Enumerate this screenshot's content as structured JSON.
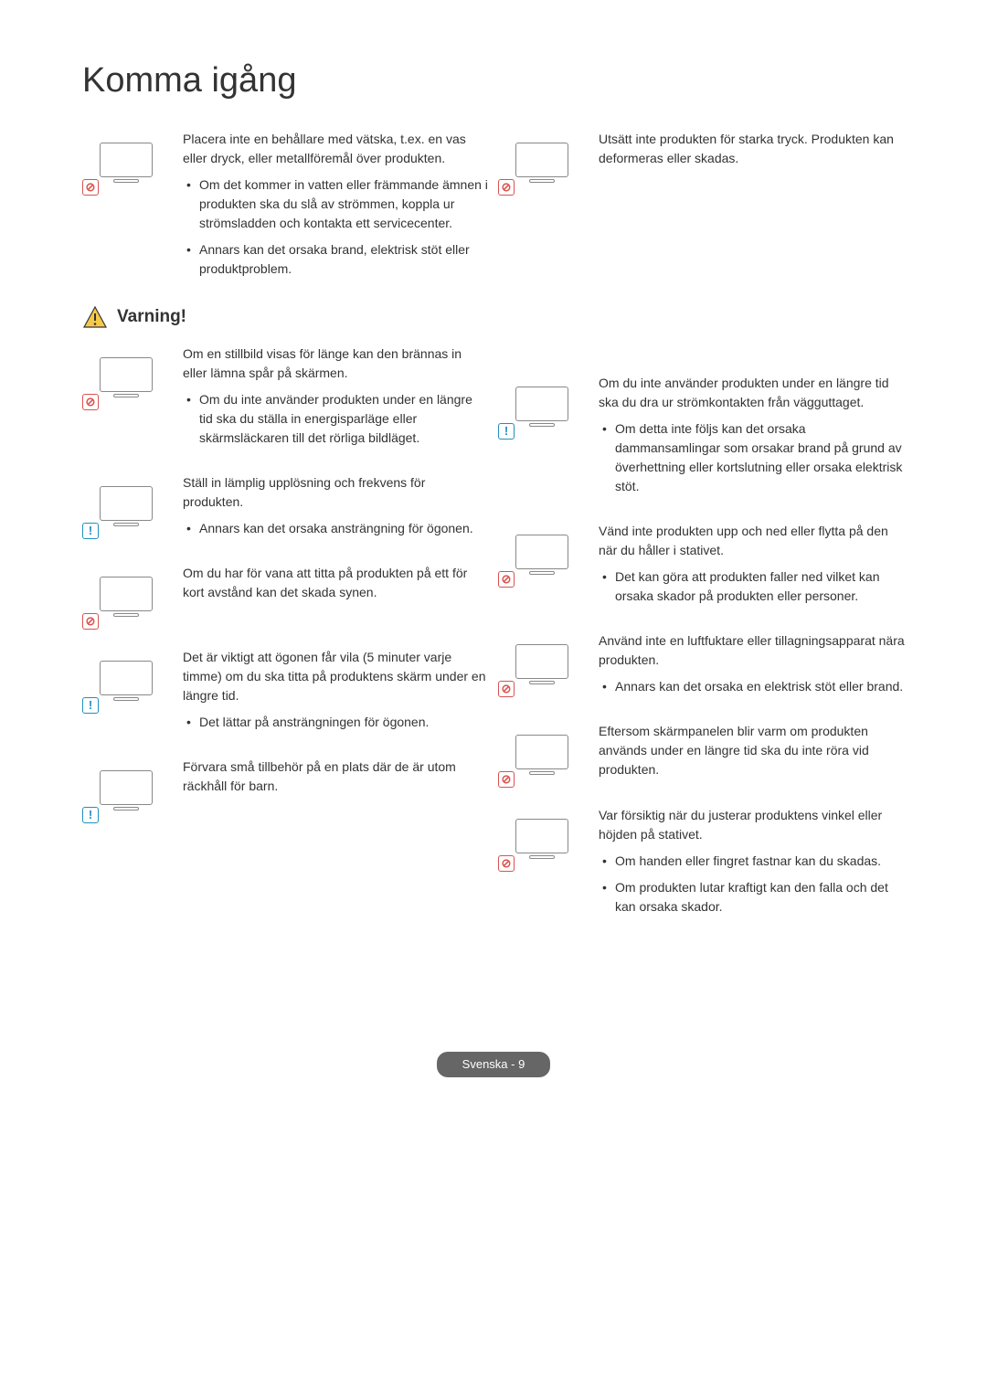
{
  "page_title": "Komma igång",
  "warning_label": "Varning!",
  "footer": "Svenska - 9",
  "colors": {
    "text": "#333333",
    "prohibit": "#d9534f",
    "info": "#1e90c0",
    "footer_bg": "#666666",
    "footer_text": "#ffffff",
    "illus_line": "#888888"
  },
  "left_col": [
    {
      "badge": "prohibit",
      "para": "Placera inte en behållare med vätska, t.ex. en vas eller dryck, eller metallföremål över produkten.",
      "bullets": [
        "Om det kommer in vatten eller främmande ämnen i produkten ska du slå av strömmen, koppla ur strömsladden och kontakta ett servicecenter.",
        "Annars kan det orsaka brand, elektrisk stöt eller produktproblem."
      ]
    },
    {
      "heading": "warning"
    },
    {
      "badge": "prohibit",
      "para": "Om en stillbild visas för länge kan den brännas in eller lämna spår på skärmen.",
      "bullets": [
        "Om du inte använder produkten under en längre tid ska du ställa in energisparläge eller skärmsläckaren till det rörliga bildläget."
      ]
    },
    {
      "badge": "info",
      "para": "Ställ in lämplig upplösning och frekvens för produkten.",
      "bullets": [
        "Annars kan det orsaka ansträngning för ögonen."
      ]
    },
    {
      "badge": "prohibit",
      "para": "Om du har för vana att titta på produkten på ett för kort avstånd kan det skada synen.",
      "bullets": []
    },
    {
      "badge": "info",
      "para": "Det är viktigt att ögonen får vila (5 minuter varje timme) om du ska titta på produktens skärm under en längre tid.",
      "bullets": [
        "Det lättar på ansträngningen för ögonen."
      ]
    },
    {
      "badge": "info",
      "para": "Förvara små tillbehör på en plats där de är utom räckhåll för barn.",
      "bullets": []
    }
  ],
  "right_col": [
    {
      "badge": "prohibit",
      "para": "Utsätt inte produkten för starka tryck. Produkten kan deformeras eller skadas.",
      "bullets": []
    },
    {
      "badge": "info",
      "para": "Om du inte använder produkten under en längre tid ska du dra ur strömkontakten från vägguttaget.",
      "bullets": [
        "Om detta inte följs kan det orsaka dammansamlingar som orsakar brand på grund av överhettning eller kortslutning eller orsaka elektrisk stöt."
      ]
    },
    {
      "badge": "prohibit",
      "para": "Vänd inte produkten upp och ned eller flytta på den när du håller i stativet.",
      "bullets": [
        "Det kan göra att produkten faller ned vilket kan orsaka skador på produkten eller personer."
      ]
    },
    {
      "badge": "prohibit",
      "para": "Använd inte en luftfuktare eller tillagningsapparat nära produkten.",
      "bullets": [
        "Annars kan det orsaka en elektrisk stöt eller brand."
      ]
    },
    {
      "badge": "prohibit",
      "para": "Eftersom skärmpanelen blir varm om produkten används under en längre tid ska du inte röra vid produkten.",
      "bullets": []
    },
    {
      "badge": "prohibit",
      "para": "Var försiktig när du justerar produktens vinkel eller höjden på stativet.",
      "bullets": [
        "Om handen eller fingret fastnar kan du skadas.",
        "Om produkten lutar kraftigt kan den falla och det kan orsaka skador."
      ]
    }
  ]
}
